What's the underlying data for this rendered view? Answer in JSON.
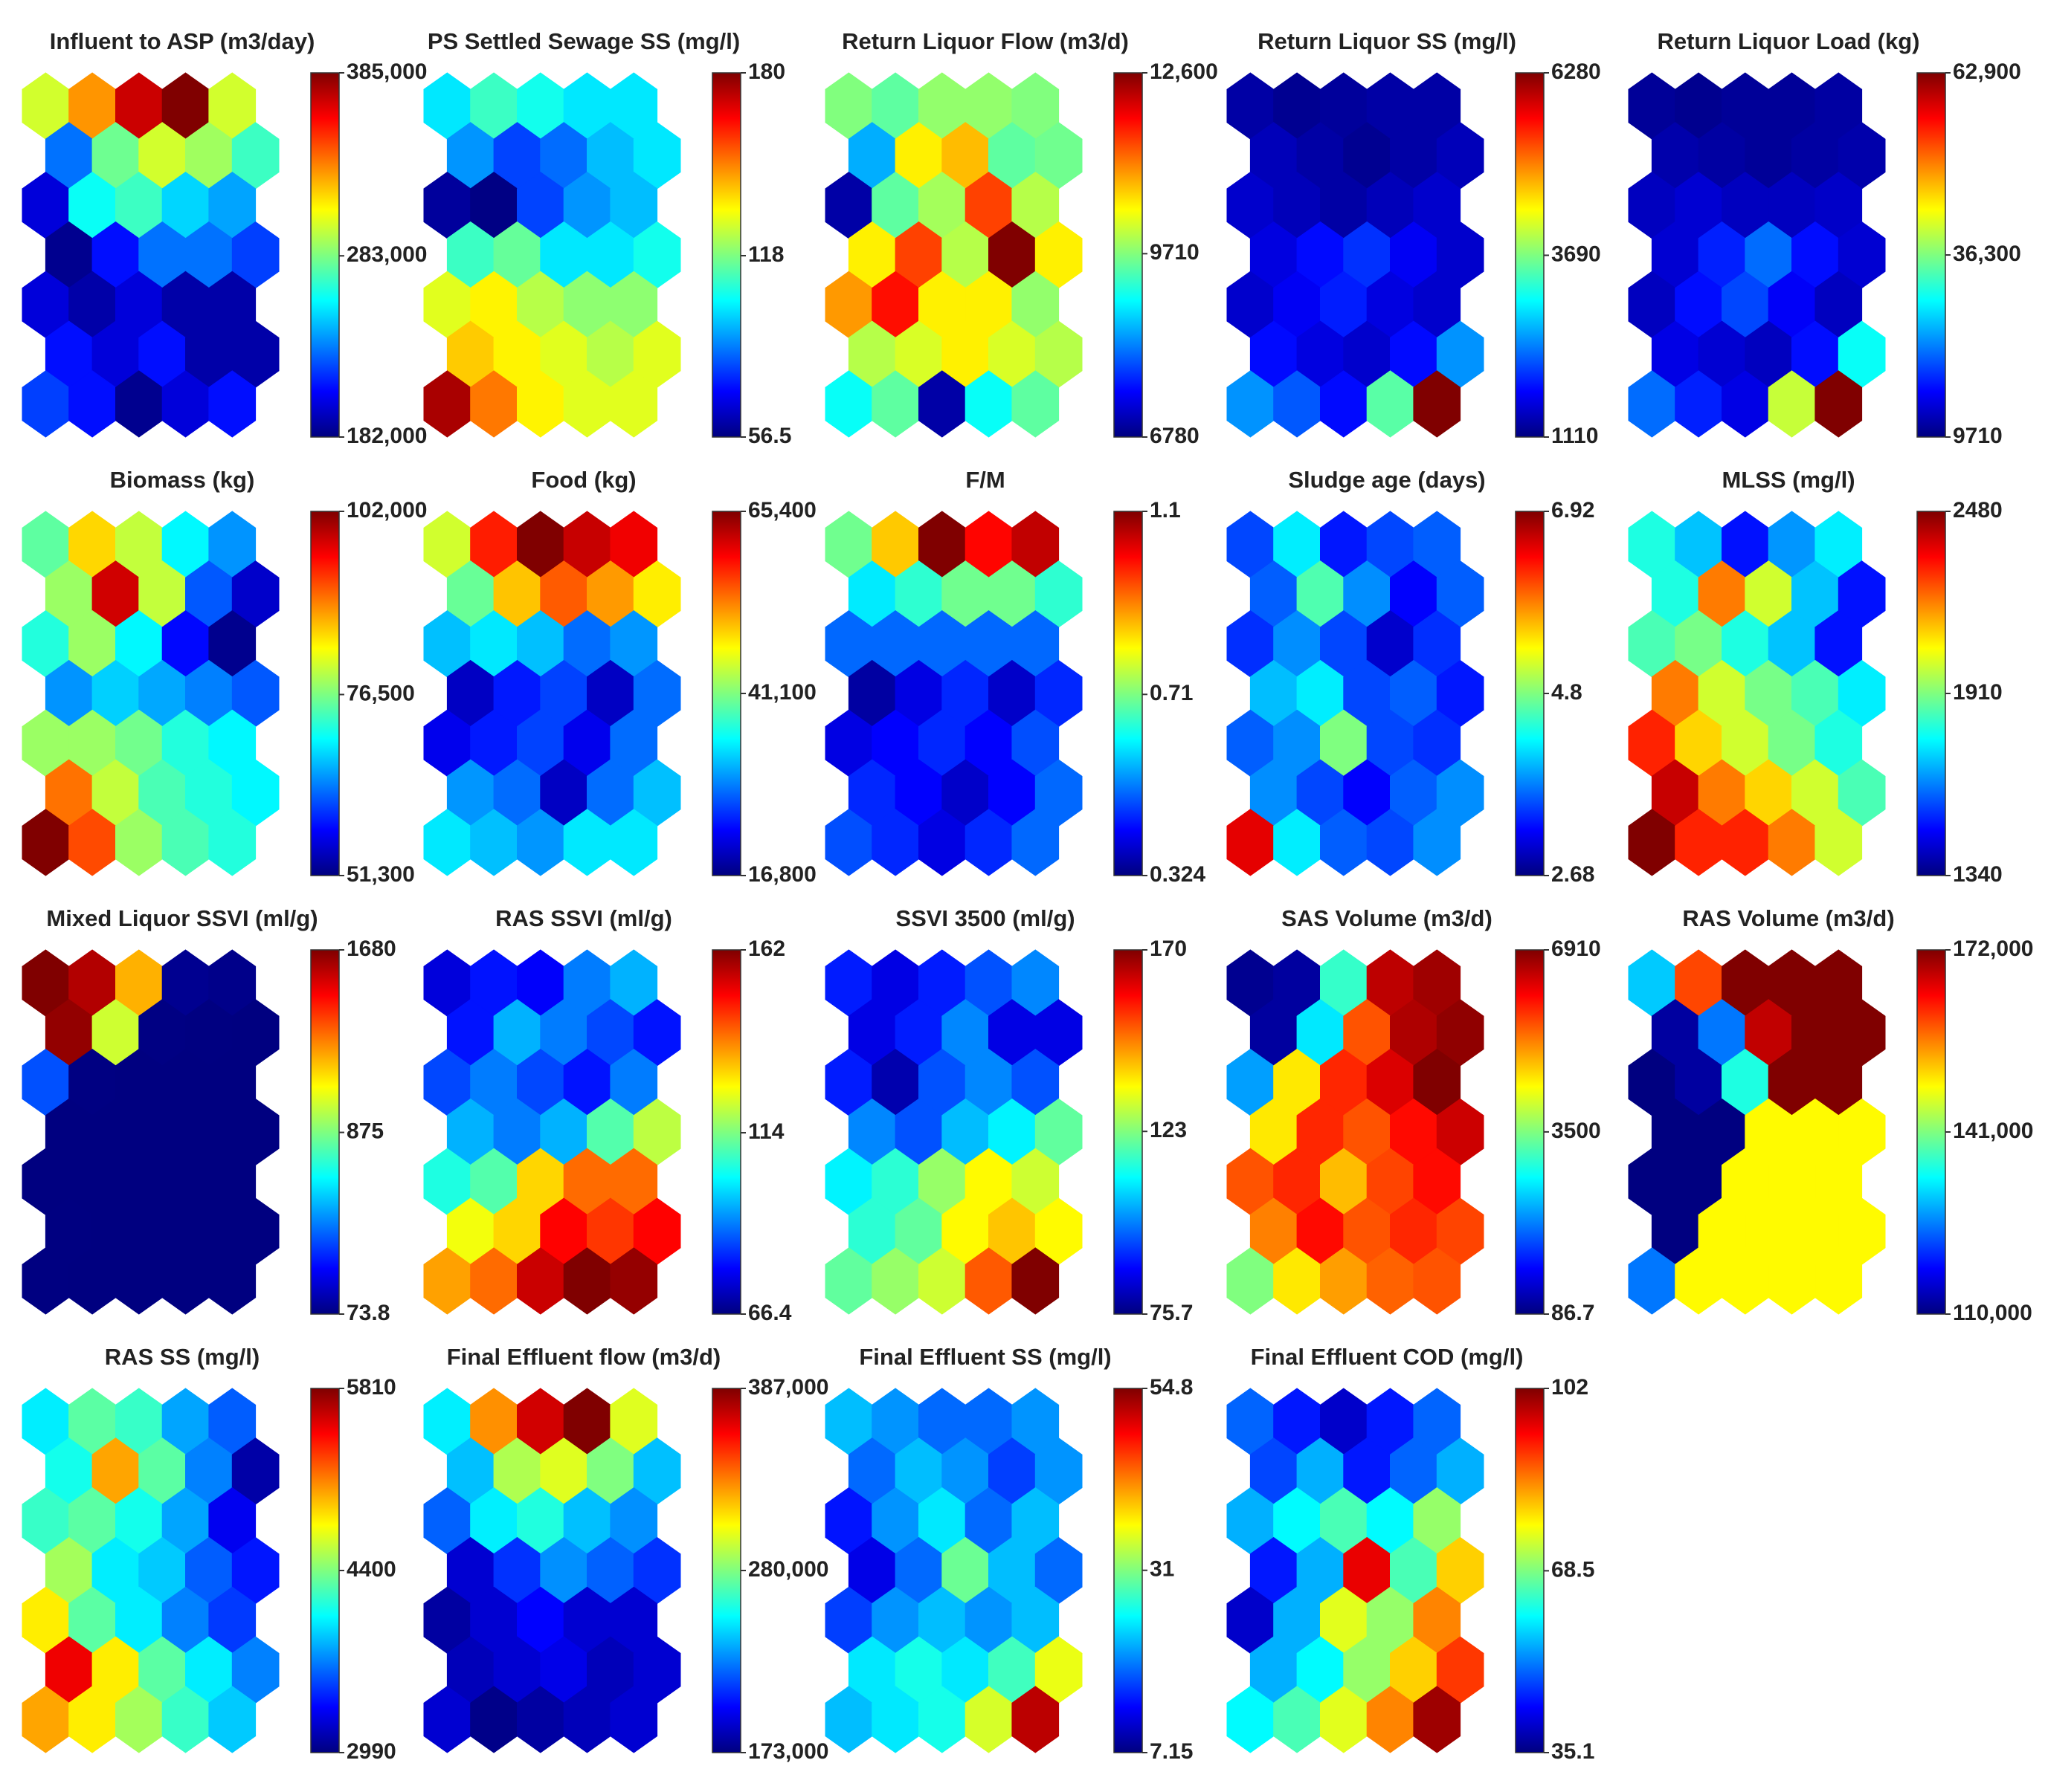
{
  "chart_data": [
    {
      "type": "heatmap",
      "title": "Influent to ASP (m3/day)",
      "ylim": [
        182000,
        385000
      ],
      "yticks": [
        {
          "value": 182000,
          "label": "182,000"
        },
        {
          "value": 283000,
          "label": "283,000"
        },
        {
          "value": 385000,
          "label": "385,000"
        }
      ],
      "values": [
        [
          300000,
          330000,
          370000,
          385000,
          300000
        ],
        [
          230000,
          280000,
          300000,
          290000,
          270000
        ],
        [
          200000,
          260000,
          270000,
          250000,
          240000
        ],
        [
          185000,
          210000,
          230000,
          230000,
          220000
        ],
        [
          200000,
          190000,
          200000,
          190000,
          190000
        ],
        [
          210000,
          200000,
          210000,
          190000,
          190000
        ],
        [
          220000,
          210000,
          185000,
          200000,
          210000
        ]
      ]
    },
    {
      "type": "heatmap",
      "title": "PS Settled Sewage SS (mg/l)",
      "ylim": [
        56.5,
        180
      ],
      "yticks": [
        56.5,
        118,
        180
      ],
      "values": [
        [
          100,
          110,
          105,
          100,
          100
        ],
        [
          90,
          80,
          85,
          95,
          100
        ],
        [
          60,
          57,
          80,
          90,
          95
        ],
        [
          110,
          115,
          100,
          100,
          105
        ],
        [
          130,
          135,
          125,
          120,
          120
        ],
        [
          140,
          135,
          130,
          125,
          130
        ],
        [
          175,
          150,
          135,
          130,
          130
        ]
      ]
    },
    {
      "type": "heatmap",
      "title": "Return Liquor Flow (m3/d)",
      "ylim": [
        6780,
        12600
      ],
      "yticks": [
        6780,
        9710,
        {
          "value": 12600,
          "label": "12,600"
        }
      ],
      "values": [
        [
          9700,
          9500,
          9800,
          9800,
          9700
        ],
        [
          8500,
          10500,
          10800,
          9500,
          9600
        ],
        [
          7000,
          9500,
          9900,
          11500,
          10000
        ],
        [
          10500,
          11500,
          10000,
          12600,
          10500
        ],
        [
          11000,
          11800,
          10500,
          10500,
          9800
        ],
        [
          10000,
          10200,
          10500,
          10200,
          10000
        ],
        [
          9000,
          9500,
          7000,
          9000,
          9500
        ]
      ]
    },
    {
      "type": "heatmap",
      "title": "Return Liquor SS (mg/l)",
      "ylim": [
        1110,
        6280
      ],
      "yticks": [
        1110,
        3690,
        6280
      ],
      "values": [
        [
          1300,
          1200,
          1250,
          1300,
          1300
        ],
        [
          1400,
          1300,
          1200,
          1300,
          1400
        ],
        [
          1500,
          1400,
          1300,
          1400,
          1500
        ],
        [
          1600,
          1800,
          2000,
          1700,
          1500
        ],
        [
          1500,
          1700,
          1900,
          1600,
          1500
        ],
        [
          1800,
          1600,
          1500,
          1800,
          2500
        ],
        [
          2500,
          2200,
          1800,
          3500,
          6280
        ]
      ]
    },
    {
      "type": "heatmap",
      "title": "Return Liquor Load (kg)",
      "ylim": [
        9710,
        62900
      ],
      "yticks": [
        9710,
        {
          "value": 36300,
          "label": "36,300"
        },
        {
          "value": 62900,
          "label": "62,900"
        }
      ],
      "values": [
        [
          11000,
          10500,
          11000,
          11000,
          11500
        ],
        [
          12000,
          11500,
          11000,
          11500,
          12000
        ],
        [
          13000,
          14000,
          13000,
          13000,
          13500
        ],
        [
          14000,
          18000,
          22000,
          17000,
          14000
        ],
        [
          13000,
          17000,
          20000,
          16000,
          13000
        ],
        [
          15000,
          14000,
          13000,
          17000,
          30000
        ],
        [
          22000,
          18000,
          15000,
          40000,
          62900
        ]
      ]
    },
    {
      "type": "heatmap",
      "title": "Biomass (kg)",
      "ylim": [
        51300,
        102000
      ],
      "yticks": [
        {
          "value": 51300,
          "label": "51,300"
        },
        {
          "value": 76500,
          "label": "76,500"
        },
        {
          "value": 102000,
          "label": "102,000"
        }
      ],
      "values": [
        [
          75000,
          85000,
          80000,
          70000,
          65000
        ],
        [
          78000,
          98000,
          80000,
          62000,
          55000
        ],
        [
          72000,
          78000,
          70000,
          58000,
          52000
        ],
        [
          65000,
          68000,
          66000,
          64000,
          62000
        ],
        [
          78000,
          78000,
          76000,
          72000,
          70000
        ],
        [
          90000,
          80000,
          74000,
          72000,
          70000
        ],
        [
          102000,
          92000,
          78000,
          74000,
          72000
        ]
      ]
    },
    {
      "type": "heatmap",
      "title": "Food (kg)",
      "ylim": [
        16800,
        65400
      ],
      "yticks": [
        {
          "value": 16800,
          "label": "16,800"
        },
        {
          "value": 41100,
          "label": "41,100"
        },
        {
          "value": 65400,
          "label": "65,400"
        }
      ],
      "values": [
        [
          45000,
          58000,
          65400,
          62000,
          60000
        ],
        [
          40000,
          50000,
          55000,
          52000,
          48000
        ],
        [
          32000,
          34000,
          32000,
          28000,
          30000
        ],
        [
          20000,
          24000,
          26000,
          20000,
          28000
        ],
        [
          22000,
          24000,
          26000,
          22000,
          28000
        ],
        [
          30000,
          28000,
          20000,
          28000,
          32000
        ],
        [
          34000,
          32000,
          30000,
          34000,
          34000
        ]
      ]
    },
    {
      "type": "heatmap",
      "title": "F/M",
      "ylim": [
        0.324,
        1.1
      ],
      "yticks": [
        0.324,
        0.71,
        1.1
      ],
      "values": [
        [
          0.7,
          0.85,
          1.1,
          1.0,
          1.05
        ],
        [
          0.6,
          0.65,
          0.7,
          0.7,
          0.65
        ],
        [
          0.5,
          0.5,
          0.5,
          0.5,
          0.5
        ],
        [
          0.35,
          0.4,
          0.45,
          0.38,
          0.45
        ],
        [
          0.4,
          0.42,
          0.45,
          0.42,
          0.48
        ],
        [
          0.45,
          0.42,
          0.38,
          0.42,
          0.5
        ],
        [
          0.48,
          0.45,
          0.4,
          0.45,
          0.5
        ]
      ]
    },
    {
      "type": "heatmap",
      "title": "Sludge age (days)",
      "ylim": [
        2.68,
        6.92
      ],
      "yticks": [
        2.68,
        4.8,
        6.92
      ],
      "values": [
        [
          3.5,
          4.2,
          3.3,
          3.5,
          3.6
        ],
        [
          3.6,
          4.6,
          3.8,
          3.2,
          3.6
        ],
        [
          3.4,
          3.8,
          3.5,
          3.0,
          3.4
        ],
        [
          4.0,
          4.2,
          3.5,
          3.6,
          3.3
        ],
        [
          3.6,
          3.8,
          4.8,
          3.5,
          3.4
        ],
        [
          3.8,
          3.5,
          3.2,
          3.6,
          3.8
        ],
        [
          6.5,
          4.2,
          3.6,
          3.5,
          3.8
        ]
      ]
    },
    {
      "type": "heatmap",
      "title": "MLSS (mg/l)",
      "ylim": [
        1340,
        2480
      ],
      "yticks": [
        1340,
        1910,
        2480
      ],
      "values": [
        [
          1800,
          1700,
          1500,
          1650,
          1750
        ],
        [
          1800,
          2200,
          2000,
          1700,
          1500
        ],
        [
          1850,
          1900,
          1800,
          1700,
          1500
        ],
        [
          2200,
          2000,
          1900,
          1850,
          1750
        ],
        [
          2300,
          2100,
          2000,
          1900,
          1800
        ],
        [
          2400,
          2200,
          2100,
          2000,
          1850
        ],
        [
          2480,
          2300,
          2300,
          2200,
          2000
        ]
      ]
    },
    {
      "type": "heatmap",
      "title": "Mixed Liquor SSVI (ml/g)",
      "ylim": [
        73.8,
        1680
      ],
      "yticks": [
        73.8,
        875,
        1680
      ],
      "values": [
        [
          1680,
          1600,
          1200,
          100,
          90
        ],
        [
          1650,
          1000,
          80,
          76,
          75
        ],
        [
          400,
          78,
          75,
          74,
          74
        ],
        [
          75,
          74,
          74,
          74,
          74
        ],
        [
          75,
          74,
          74,
          74,
          74
        ],
        [
          76,
          74,
          74,
          74,
          74
        ],
        [
          76,
          75,
          74,
          74,
          74
        ]
      ]
    },
    {
      "type": "heatmap",
      "title": "RAS SSVI (ml/g)",
      "ylim": [
        66.4,
        162
      ],
      "yticks": [
        66.4,
        114,
        162
      ],
      "values": [
        [
          75,
          80,
          78,
          90,
          95
        ],
        [
          80,
          95,
          90,
          85,
          80
        ],
        [
          85,
          90,
          85,
          80,
          90
        ],
        [
          95,
          90,
          95,
          110,
          120
        ],
        [
          105,
          110,
          130,
          140,
          140
        ],
        [
          125,
          130,
          150,
          145,
          150
        ],
        [
          135,
          140,
          155,
          162,
          160
        ]
      ]
    },
    {
      "type": "heatmap",
      "title": "SSVI 3500 (ml/g)",
      "ylim": [
        75.7,
        170
      ],
      "yticks": [
        75.7,
        123,
        170
      ],
      "values": [
        [
          90,
          85,
          90,
          95,
          100
        ],
        [
          85,
          90,
          100,
          85,
          85
        ],
        [
          90,
          80,
          95,
          100,
          95
        ],
        [
          100,
          95,
          105,
          110,
          120
        ],
        [
          110,
          115,
          125,
          135,
          130
        ],
        [
          115,
          120,
          135,
          140,
          135
        ],
        [
          120,
          125,
          130,
          150,
          170
        ]
      ]
    },
    {
      "type": "heatmap",
      "title": "SAS Volume (m3/d)",
      "ylim": [
        86.7,
        6910
      ],
      "yticks": [
        86.7,
        3500,
        6910
      ],
      "values": [
        [
          200,
          300,
          3000,
          6500,
          6700
        ],
        [
          300,
          2500,
          5500,
          6600,
          6800
        ],
        [
          2000,
          4500,
          5800,
          6300,
          6910
        ],
        [
          4500,
          5800,
          5500,
          6000,
          6400
        ],
        [
          5500,
          5800,
          4800,
          5600,
          6000
        ],
        [
          5200,
          6000,
          5500,
          5800,
          5600
        ],
        [
          3500,
          4500,
          5000,
          5400,
          5500
        ]
      ]
    },
    {
      "type": "heatmap",
      "title": "RAS Volume (m3/d)",
      "ylim": [
        110000,
        172000
      ],
      "yticks": [
        {
          "value": 110000,
          "label": "110,000"
        },
        {
          "value": 141000,
          "label": "141,000"
        },
        {
          "value": 172000,
          "label": "172,000"
        }
      ],
      "values": [
        [
          130000,
          160000,
          172000,
          172000,
          172000
        ],
        [
          112000,
          125000,
          168000,
          172000,
          172000
        ],
        [
          110000,
          112000,
          135000,
          172000,
          172000
        ],
        [
          110000,
          110000,
          149000,
          149000,
          149000
        ],
        [
          110000,
          110000,
          149000,
          149000,
          149000
        ],
        [
          110000,
          149000,
          149000,
          149000,
          149000
        ],
        [
          125000,
          149000,
          149000,
          149000,
          149000
        ]
      ]
    },
    {
      "type": "heatmap",
      "title": "RAS SS (mg/l)",
      "ylim": [
        2990,
        5810
      ],
      "yticks": [
        2990,
        4400,
        5810
      ],
      "values": [
        [
          4000,
          4300,
          4200,
          3800,
          3600
        ],
        [
          4100,
          5000,
          4300,
          3700,
          3100
        ],
        [
          4200,
          4300,
          4100,
          3800,
          3300
        ],
        [
          4500,
          4000,
          3900,
          3600,
          3400
        ],
        [
          4800,
          4300,
          4000,
          3700,
          3500
        ],
        [
          5500,
          4800,
          4300,
          4000,
          3700
        ],
        [
          5000,
          4800,
          4500,
          4200,
          3900
        ]
      ]
    },
    {
      "type": "heatmap",
      "title": "Final Effluent flow (m3/d)",
      "ylim": [
        173000,
        387000
      ],
      "yticks": [
        {
          "value": 173000,
          "label": "173,000"
        },
        {
          "value": 280000,
          "label": "280,000"
        },
        {
          "value": 387000,
          "label": "387,000"
        }
      ],
      "values": [
        [
          250000,
          330000,
          370000,
          387000,
          300000
        ],
        [
          240000,
          290000,
          300000,
          280000,
          240000
        ],
        [
          220000,
          250000,
          260000,
          240000,
          230000
        ],
        [
          190000,
          210000,
          230000,
          220000,
          210000
        ],
        [
          180000,
          190000,
          200000,
          190000,
          190000
        ],
        [
          185000,
          190000,
          195000,
          185000,
          190000
        ],
        [
          190000,
          175000,
          180000,
          185000,
          190000
        ]
      ]
    },
    {
      "type": "heatmap",
      "title": "Final Effluent SS (mg/l)",
      "ylim": [
        7.15,
        54.8
      ],
      "yticks": [
        7.15,
        31,
        54.8
      ],
      "values": [
        [
          22,
          20,
          18,
          18,
          20
        ],
        [
          18,
          22,
          20,
          16,
          20
        ],
        [
          14,
          20,
          24,
          18,
          22
        ],
        [
          12,
          18,
          30,
          22,
          18
        ],
        [
          16,
          20,
          22,
          20,
          22
        ],
        [
          24,
          26,
          24,
          28,
          36
        ],
        [
          22,
          24,
          26,
          35,
          52
        ]
      ]
    },
    {
      "type": "heatmap",
      "title": "Final Effluent COD (mg/l)",
      "ylim": [
        35.1,
        102
      ],
      "yticks": [
        35.1,
        68.5,
        102
      ],
      "values": [
        [
          50,
          45,
          40,
          45,
          50
        ],
        [
          48,
          55,
          45,
          50,
          55
        ],
        [
          55,
          60,
          65,
          60,
          70
        ],
        [
          45,
          55,
          95,
          65,
          80
        ],
        [
          40,
          55,
          75,
          70,
          85
        ],
        [
          55,
          60,
          70,
          80,
          90
        ],
        [
          60,
          65,
          75,
          85,
          100
        ]
      ]
    }
  ]
}
